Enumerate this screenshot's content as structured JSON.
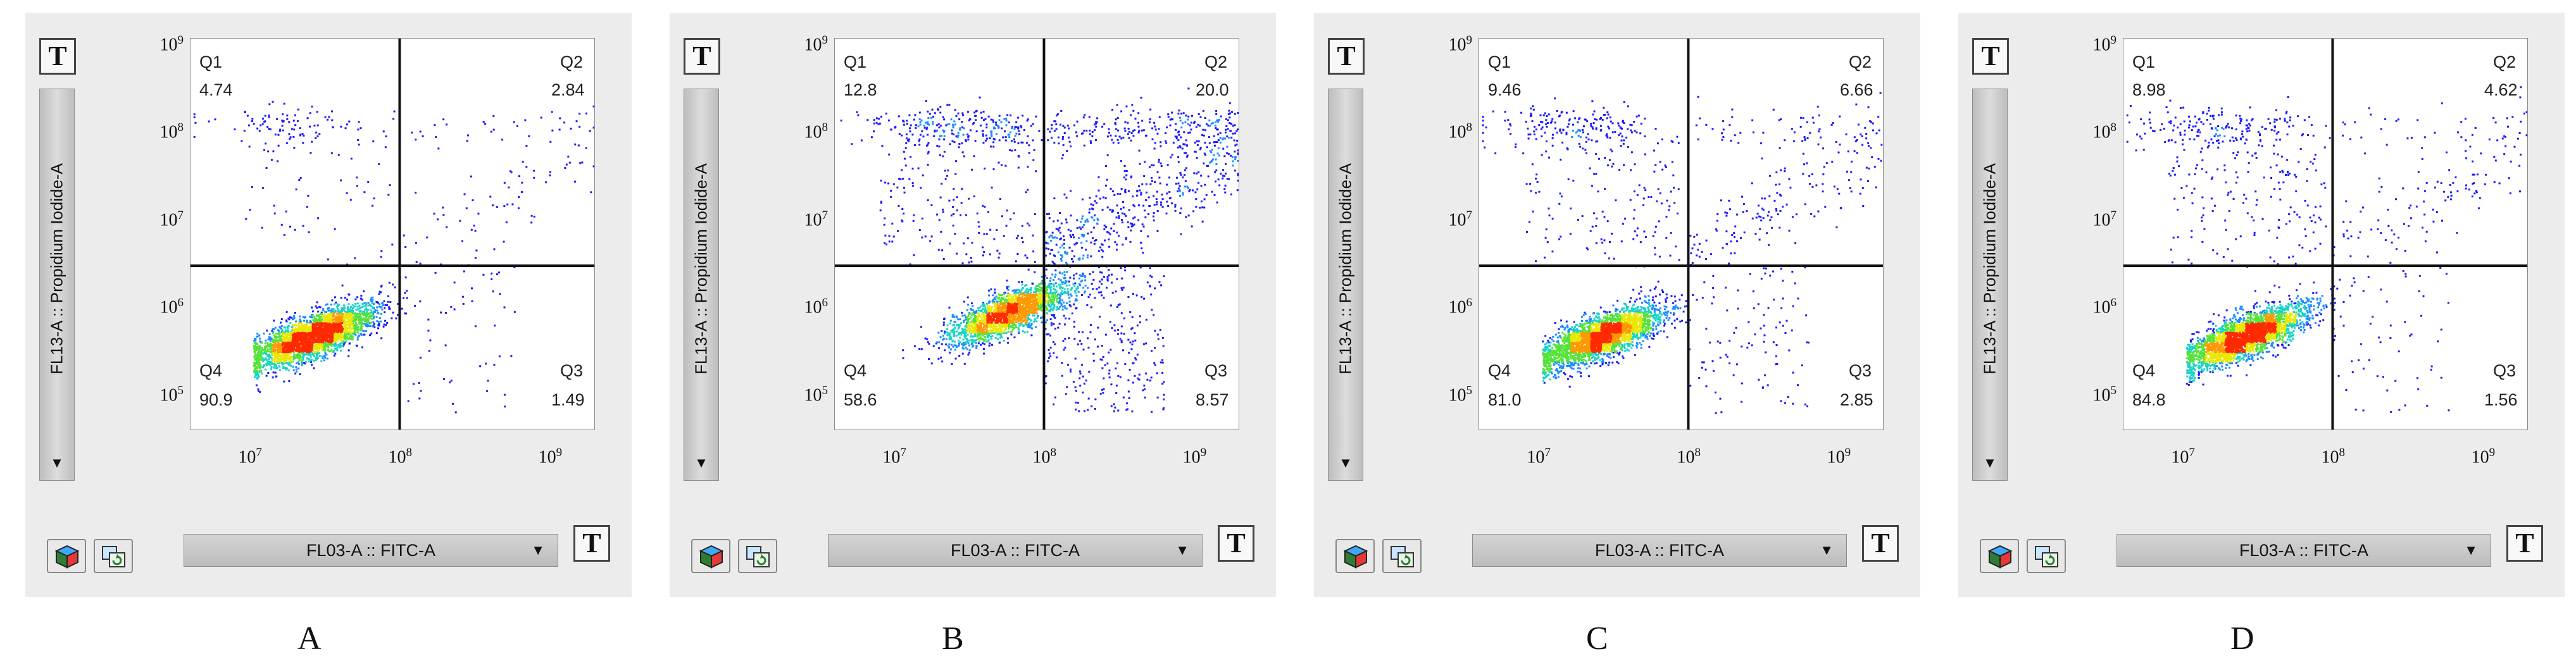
{
  "chart_data": [
    {
      "type": "scatter",
      "caption": "A",
      "xlabel": "FL03-A :: FITC-A",
      "ylabel": "FL13-A :: Propidium Iodide-A",
      "xscale": "log",
      "yscale": "log",
      "xlim": [
        4000000,
        2000000000
      ],
      "ylim": [
        40000,
        1200000000
      ],
      "x_ticks": [
        {
          "base": "10",
          "exp": "7"
        },
        {
          "base": "10",
          "exp": "8"
        },
        {
          "base": "10",
          "exp": "9"
        }
      ],
      "y_ticks": [
        {
          "base": "10",
          "exp": "5"
        },
        {
          "base": "10",
          "exp": "6"
        },
        {
          "base": "10",
          "exp": "7"
        },
        {
          "base": "10",
          "exp": "8"
        },
        {
          "base": "10",
          "exp": "9"
        }
      ],
      "quadrant_gate": {
        "x": 100000000,
        "y": 3000000
      },
      "quadrants": [
        {
          "name": "Q1",
          "value": "4.74"
        },
        {
          "name": "Q2",
          "value": "2.84"
        },
        {
          "name": "Q3",
          "value": "1.49"
        },
        {
          "name": "Q4",
          "value": "90.9"
        }
      ]
    },
    {
      "type": "scatter",
      "caption": "B",
      "xlabel": "FL03-A :: FITC-A",
      "ylabel": "FL13-A :: Propidium Iodide-A",
      "xscale": "log",
      "yscale": "log",
      "xlim": [
        4000000,
        2000000000
      ],
      "ylim": [
        40000,
        1200000000
      ],
      "x_ticks": [
        {
          "base": "10",
          "exp": "7"
        },
        {
          "base": "10",
          "exp": "8"
        },
        {
          "base": "10",
          "exp": "9"
        }
      ],
      "y_ticks": [
        {
          "base": "10",
          "exp": "5"
        },
        {
          "base": "10",
          "exp": "6"
        },
        {
          "base": "10",
          "exp": "7"
        },
        {
          "base": "10",
          "exp": "8"
        },
        {
          "base": "10",
          "exp": "9"
        }
      ],
      "quadrant_gate": {
        "x": 100000000,
        "y": 3000000
      },
      "quadrants": [
        {
          "name": "Q1",
          "value": "12.8"
        },
        {
          "name": "Q2",
          "value": "20.0"
        },
        {
          "name": "Q3",
          "value": "8.57"
        },
        {
          "name": "Q4",
          "value": "58.6"
        }
      ]
    },
    {
      "type": "scatter",
      "caption": "C",
      "xlabel": "FL03-A :: FITC-A",
      "ylabel": "FL13-A :: Propidium Iodide-A",
      "xscale": "log",
      "yscale": "log",
      "xlim": [
        4000000,
        2000000000
      ],
      "ylim": [
        40000,
        1200000000
      ],
      "x_ticks": [
        {
          "base": "10",
          "exp": "7"
        },
        {
          "base": "10",
          "exp": "8"
        },
        {
          "base": "10",
          "exp": "9"
        }
      ],
      "y_ticks": [
        {
          "base": "10",
          "exp": "5"
        },
        {
          "base": "10",
          "exp": "6"
        },
        {
          "base": "10",
          "exp": "7"
        },
        {
          "base": "10",
          "exp": "8"
        },
        {
          "base": "10",
          "exp": "9"
        }
      ],
      "quadrant_gate": {
        "x": 100000000,
        "y": 3000000
      },
      "quadrants": [
        {
          "name": "Q1",
          "value": "9.46"
        },
        {
          "name": "Q2",
          "value": "6.66"
        },
        {
          "name": "Q3",
          "value": "2.85"
        },
        {
          "name": "Q4",
          "value": "81.0"
        }
      ]
    },
    {
      "type": "scatter",
      "caption": "D",
      "xlabel": "FL03-A :: FITC-A",
      "ylabel": "FL13-A :: Propidium Iodide-A",
      "xscale": "log",
      "yscale": "log",
      "xlim": [
        4000000,
        2000000000
      ],
      "ylim": [
        40000,
        1200000000
      ],
      "x_ticks": [
        {
          "base": "10",
          "exp": "7"
        },
        {
          "base": "10",
          "exp": "8"
        },
        {
          "base": "10",
          "exp": "9"
        }
      ],
      "y_ticks": [
        {
          "base": "10",
          "exp": "5"
        },
        {
          "base": "10",
          "exp": "6"
        },
        {
          "base": "10",
          "exp": "7"
        },
        {
          "base": "10",
          "exp": "8"
        },
        {
          "base": "10",
          "exp": "9"
        }
      ],
      "quadrant_gate": {
        "x": 100000000,
        "y": 3000000
      },
      "quadrants": [
        {
          "name": "Q1",
          "value": "8.98"
        },
        {
          "name": "Q2",
          "value": "4.62"
        },
        {
          "name": "Q3",
          "value": "1.56"
        },
        {
          "name": "Q4",
          "value": "84.8"
        }
      ]
    }
  ],
  "ui": {
    "text_button_label": "T",
    "dropdown_arrow": "▼"
  },
  "colors": {
    "density_low": "#1a1aff",
    "density_mid": "#19d3c5",
    "density_high": "#ff2a00",
    "gate_line": "#111111",
    "panel_bg": "#ececec"
  }
}
